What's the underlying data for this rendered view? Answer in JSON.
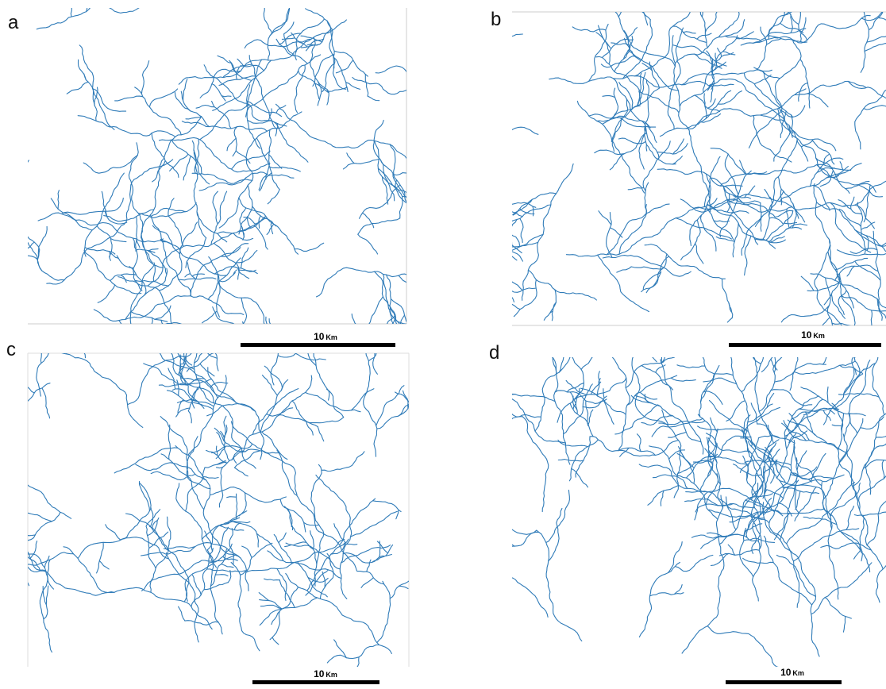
{
  "panels": [
    {
      "label": "a",
      "scale_bar": {
        "value": "10",
        "unit": "Km"
      }
    },
    {
      "label": "b",
      "scale_bar": {
        "value": "10",
        "unit": "Km"
      }
    },
    {
      "label": "c",
      "scale_bar": {
        "value": "10",
        "unit": "Km"
      }
    },
    {
      "label": "d",
      "scale_bar": {
        "value": "10",
        "unit": "Km"
      }
    }
  ]
}
